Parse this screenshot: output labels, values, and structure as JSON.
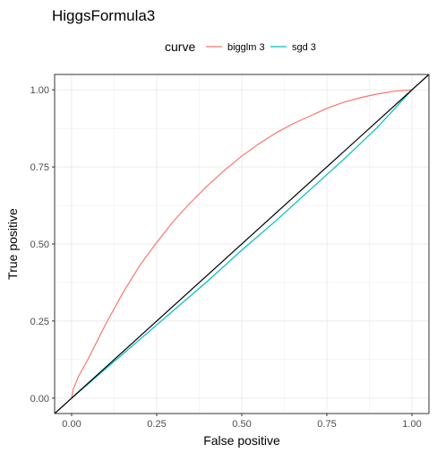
{
  "chart_data": {
    "type": "line",
    "title": "HiggsFormula3",
    "xlabel": "False positive",
    "ylabel": "True positive",
    "xlim": [
      -0.05,
      1.05
    ],
    "ylim": [
      -0.05,
      1.05
    ],
    "x_ticks": [
      "0.00",
      "0.25",
      "0.50",
      "0.75",
      "1.00"
    ],
    "y_ticks": [
      "0.00",
      "0.25",
      "0.50",
      "0.75",
      "1.00"
    ],
    "grid": true,
    "legend": {
      "title": "curve",
      "position": "top",
      "entries": [
        "bigglm 3",
        "sgd 3"
      ]
    },
    "series": [
      {
        "name": "bigglm 3",
        "color": "#F8766D",
        "x": [
          0.0,
          0.005,
          0.02,
          0.05,
          0.1,
          0.15,
          0.2,
          0.25,
          0.3,
          0.35,
          0.4,
          0.45,
          0.5,
          0.55,
          0.6,
          0.65,
          0.7,
          0.75,
          0.8,
          0.85,
          0.9,
          0.95,
          1.0
        ],
        "y": [
          0.0,
          0.03,
          0.07,
          0.13,
          0.24,
          0.34,
          0.43,
          0.505,
          0.575,
          0.635,
          0.69,
          0.74,
          0.785,
          0.825,
          0.86,
          0.89,
          0.915,
          0.94,
          0.96,
          0.975,
          0.987,
          0.996,
          1.0
        ]
      },
      {
        "name": "sgd 3",
        "color": "#00BFC4",
        "x": [
          0.0,
          0.1,
          0.2,
          0.3,
          0.4,
          0.5,
          0.6,
          0.7,
          0.8,
          0.9,
          1.0
        ],
        "y": [
          0.0,
          0.095,
          0.19,
          0.285,
          0.38,
          0.48,
          0.575,
          0.675,
          0.775,
          0.88,
          1.0
        ]
      }
    ],
    "reference_line": {
      "color": "#000000",
      "x": [
        -0.05,
        1.05
      ],
      "y": [
        -0.05,
        1.05
      ]
    }
  }
}
